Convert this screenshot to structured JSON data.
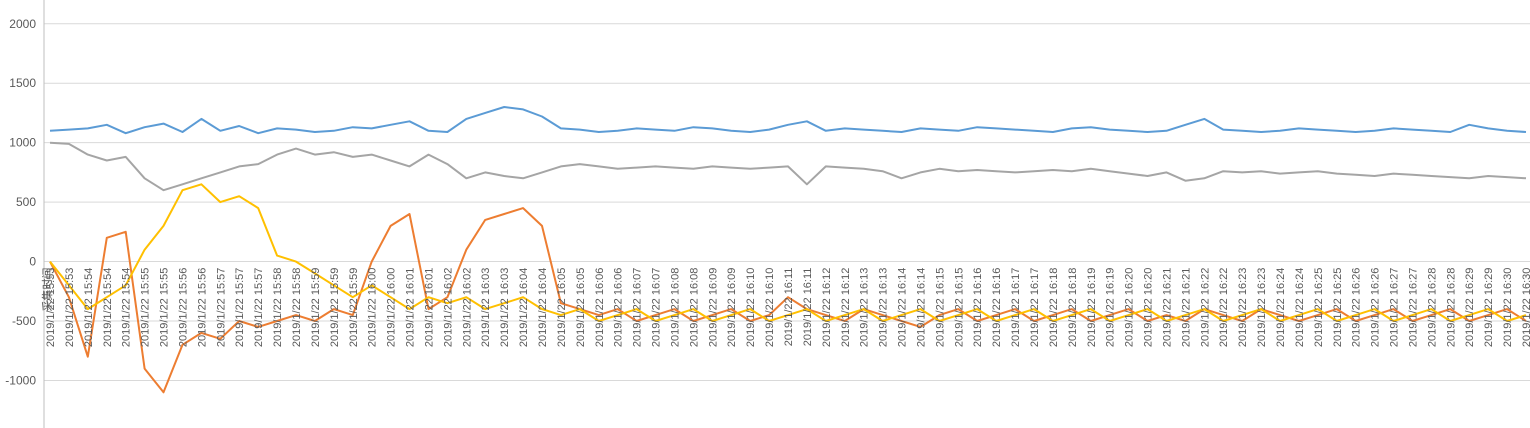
{
  "chart_data": {
    "type": "line",
    "xlabel": "采集时间",
    "ylabel": "",
    "ylim": [
      -1400,
      2200
    ],
    "y_ticks": [
      -1000,
      -500,
      0,
      500,
      1000,
      1500,
      2000
    ],
    "grid": true,
    "legend": "none",
    "categories": [
      "2019/1/22 15:53",
      "2019/1/22 15:53",
      "2019/1/22 15:54",
      "2019/1/22 15:54",
      "2019/1/22 15:54",
      "2019/1/22 15:55",
      "2019/1/22 15:55",
      "2019/1/22 15:56",
      "2019/1/22 15:56",
      "2019/1/22 15:57",
      "2019/1/22 15:57",
      "2019/1/22 15:57",
      "2019/1/22 15:58",
      "2019/1/22 15:58",
      "2019/1/22 15:59",
      "2019/1/22 15:59",
      "2019/1/22 15:59",
      "2019/1/22 16:00",
      "2019/1/22 16:00",
      "2019/1/22 16:01",
      "2019/1/22 16:01",
      "2019/1/22 16:02",
      "2019/1/22 16:02",
      "2019/1/22 16:03",
      "2019/1/22 16:03",
      "2019/1/22 16:04",
      "2019/1/22 16:04",
      "2019/1/22 16:05",
      "2019/1/22 16:05",
      "2019/1/22 16:06",
      "2019/1/22 16:06",
      "2019/1/22 16:07",
      "2019/1/22 16:07",
      "2019/1/22 16:08",
      "2019/1/22 16:08",
      "2019/1/22 16:09",
      "2019/1/22 16:09",
      "2019/1/22 16:10",
      "2019/1/22 16:10",
      "2019/1/22 16:11",
      "2019/1/22 16:11",
      "2019/1/22 16:12",
      "2019/1/22 16:12",
      "2019/1/22 16:13",
      "2019/1/22 16:13",
      "2019/1/22 16:14",
      "2019/1/22 16:14",
      "2019/1/22 16:15",
      "2019/1/22 16:15",
      "2019/1/22 16:16",
      "2019/1/22 16:16",
      "2019/1/22 16:17",
      "2019/1/22 16:17",
      "2019/1/22 16:18",
      "2019/1/22 16:18",
      "2019/1/22 16:19",
      "2019/1/22 16:19",
      "2019/1/22 16:20",
      "2019/1/22 16:20",
      "2019/1/22 16:21",
      "2019/1/22 16:21",
      "2019/1/22 16:22",
      "2019/1/22 16:22",
      "2019/1/22 16:23",
      "2019/1/22 16:23",
      "2019/1/22 16:24",
      "2019/1/22 16:24",
      "2019/1/22 16:25",
      "2019/1/22 16:25",
      "2019/1/22 16:26",
      "2019/1/22 16:26",
      "2019/1/22 16:27",
      "2019/1/22 16:27",
      "2019/1/22 16:28",
      "2019/1/22 16:28",
      "2019/1/22 16:29",
      "2019/1/22 16:29",
      "2019/1/22 16:30",
      "2019/1/22 16:30"
    ],
    "series": [
      {
        "color": "#5B9BD5",
        "values": [
          1100,
          1110,
          1120,
          1150,
          1080,
          1130,
          1160,
          1090,
          1200,
          1100,
          1140,
          1080,
          1120,
          1110,
          1090,
          1100,
          1130,
          1120,
          1150,
          1180,
          1100,
          1090,
          1200,
          1250,
          1300,
          1280,
          1220,
          1120,
          1110,
          1090,
          1100,
          1120,
          1110,
          1100,
          1130,
          1120,
          1100,
          1090,
          1110,
          1150,
          1180,
          1100,
          1120,
          1110,
          1100,
          1090,
          1120,
          1110,
          1100,
          1130,
          1120,
          1110,
          1100,
          1090,
          1120,
          1130,
          1110,
          1100,
          1090,
          1100,
          1150,
          1200,
          1110,
          1100,
          1090,
          1100,
          1120,
          1110,
          1100,
          1090,
          1100,
          1120,
          1110,
          1100,
          1090,
          1150,
          1120,
          1100,
          1090
        ]
      },
      {
        "color": "#A5A5A5",
        "values": [
          1000,
          990,
          900,
          850,
          880,
          700,
          600,
          650,
          700,
          750,
          800,
          820,
          900,
          950,
          900,
          920,
          880,
          900,
          850,
          800,
          900,
          820,
          700,
          750,
          720,
          700,
          750,
          800,
          820,
          800,
          780,
          790,
          800,
          790,
          780,
          800,
          790,
          780,
          790,
          800,
          650,
          800,
          790,
          780,
          760,
          700,
          750,
          780,
          760,
          770,
          760,
          750,
          760,
          770,
          760,
          780,
          760,
          740,
          720,
          750,
          680,
          700,
          760,
          750,
          760,
          740,
          750,
          760,
          740,
          730,
          720,
          740,
          730,
          720,
          710,
          700,
          720,
          710,
          700
        ]
      },
      {
        "color": "#ED7D31",
        "values": [
          0,
          -300,
          -800,
          200,
          250,
          -900,
          -1100,
          -700,
          -600,
          -650,
          -500,
          -550,
          -500,
          -450,
          -500,
          -400,
          -450,
          0,
          300,
          400,
          -400,
          -300,
          100,
          350,
          400,
          450,
          300,
          -350,
          -400,
          -450,
          -400,
          -500,
          -450,
          -400,
          -500,
          -450,
          -400,
          -500,
          -450,
          -300,
          -400,
          -450,
          -500,
          -400,
          -450,
          -500,
          -550,
          -450,
          -400,
          -500,
          -450,
          -400,
          -500,
          -450,
          -400,
          -500,
          -450,
          -400,
          -500,
          -450,
          -500,
          -400,
          -450,
          -500,
          -400,
          -450,
          -500,
          -450,
          -400,
          -500,
          -450,
          -400,
          -500,
          -450,
          -400,
          -500,
          -450,
          -400,
          -500
        ]
      },
      {
        "color": "#FFC000",
        "values": [
          0,
          -200,
          -400,
          -300,
          -200,
          100,
          300,
          600,
          650,
          500,
          550,
          450,
          50,
          0,
          -100,
          -200,
          -300,
          -200,
          -300,
          -400,
          -300,
          -350,
          -300,
          -400,
          -350,
          -300,
          -400,
          -450,
          -400,
          -500,
          -450,
          -400,
          -500,
          -450,
          -400,
          -500,
          -450,
          -400,
          -500,
          -450,
          -400,
          -500,
          -450,
          -400,
          -500,
          -450,
          -400,
          -500,
          -450,
          -400,
          -500,
          -450,
          -400,
          -500,
          -450,
          -400,
          -500,
          -450,
          -400,
          -500,
          -450,
          -400,
          -500,
          -450,
          -400,
          -500,
          -450,
          -400,
          -500,
          -450,
          -400,
          -500,
          -450,
          -400,
          -500,
          -450,
          -400,
          -500,
          -450
        ]
      }
    ]
  }
}
